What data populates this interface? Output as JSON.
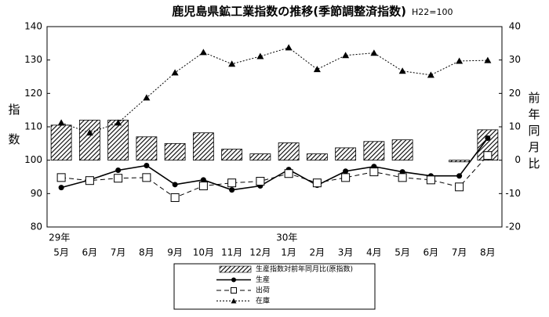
{
  "chart_data": {
    "type": "combo",
    "title": "鹿児島県鉱工業指数の推移(季節調整済指数)",
    "subtitle": "H22=100",
    "y_label": "指数",
    "y2_label": "前年同月比",
    "categories": [
      "5月",
      "6月",
      "7月",
      "8月",
      "9月",
      "10月",
      "11月",
      "12月",
      "1月",
      "2月",
      "3月",
      "4月",
      "5月",
      "6月",
      "7月",
      "8月"
    ],
    "year_labels": [
      "29年",
      null,
      null,
      null,
      null,
      null,
      null,
      null,
      "30年",
      null,
      null,
      null,
      null,
      null,
      null,
      null
    ],
    "ylim": [
      80,
      140
    ],
    "yticks": [
      80,
      90,
      100,
      110,
      120,
      130,
      140
    ],
    "y2lim": [
      -20,
      40
    ],
    "y2ticks": [
      -20,
      -10,
      0,
      10,
      20,
      30,
      40
    ],
    "series": [
      {
        "name": "生産指数対前年同月比(原指数)",
        "type": "bar",
        "axis": "y2",
        "color": "#000000",
        "values": [
          10.5,
          12,
          12,
          7,
          5,
          8.2,
          3.3,
          1.9,
          5.2,
          1.9,
          3.7,
          5.6,
          6.1,
          0,
          -0.5,
          9.1
        ]
      },
      {
        "name": "生産",
        "type": "line",
        "line": "solid",
        "marker": "circle",
        "color": "#000000",
        "values": [
          91.8,
          94.1,
          97,
          98.4,
          92.7,
          94.1,
          91.1,
          92.3,
          97.2,
          92.5,
          96.7,
          98.1,
          96.5,
          95.3,
          95.3,
          106.6
        ]
      },
      {
        "name": "出荷",
        "type": "line",
        "line": "dashed",
        "marker": "square",
        "color": "#000000",
        "values": [
          94.8,
          93.9,
          94.6,
          94.8,
          88.8,
          92.3,
          93.2,
          93.7,
          96,
          93.2,
          94.8,
          96.5,
          94.8,
          94.1,
          92,
          101.4
        ]
      },
      {
        "name": "在庫",
        "type": "line",
        "line": "dotted",
        "marker": "triangle",
        "color": "#000000",
        "values": [
          111.2,
          108.2,
          111.2,
          118.7,
          126.2,
          132.3,
          128.8,
          131.1,
          133.7,
          127.2,
          131.4,
          132.1,
          126.7,
          125.5,
          129.7,
          129.9
        ]
      }
    ]
  }
}
